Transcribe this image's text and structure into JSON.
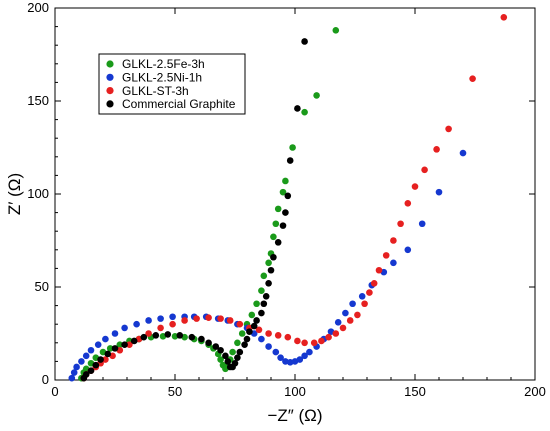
{
  "chart_data": {
    "type": "scatter",
    "title": "",
    "xlabel": "−Z″ (Ω)",
    "ylabel": "Z′ (Ω)",
    "xlim": [
      0,
      200
    ],
    "ylim": [
      0,
      200
    ],
    "xticks": [
      "0",
      "50",
      "100",
      "150",
      "200"
    ],
    "yticks": [
      "0",
      "50",
      "100",
      "150",
      "200"
    ],
    "grid": false,
    "legend_position": "top-left",
    "series": [
      {
        "name": "GLKL-2.5Fe-3h",
        "color": "#1a9a1a",
        "points": [
          [
            11,
            1
          ],
          [
            12,
            4
          ],
          [
            13,
            6
          ],
          [
            15,
            9
          ],
          [
            17,
            12
          ],
          [
            20,
            15
          ],
          [
            23,
            17
          ],
          [
            27,
            19
          ],
          [
            31,
            21
          ],
          [
            35,
            22
          ],
          [
            40,
            23
          ],
          [
            45,
            23.5
          ],
          [
            50,
            23.5
          ],
          [
            54,
            23
          ],
          [
            58,
            22
          ],
          [
            61,
            21
          ],
          [
            64,
            19
          ],
          [
            66,
            17
          ],
          [
            68,
            14
          ],
          [
            69,
            11
          ],
          [
            70,
            8
          ],
          [
            71,
            6
          ],
          [
            72,
            8
          ],
          [
            73,
            11
          ],
          [
            74,
            15
          ],
          [
            76,
            20
          ],
          [
            78,
            25
          ],
          [
            80,
            30
          ],
          [
            82,
            35
          ],
          [
            84,
            41
          ],
          [
            86,
            48
          ],
          [
            87,
            56
          ],
          [
            89,
            63
          ],
          [
            90,
            68
          ],
          [
            91,
            77
          ],
          [
            92,
            84
          ],
          [
            93,
            92
          ],
          [
            95,
            101
          ],
          [
            96,
            107
          ],
          [
            99,
            125
          ],
          [
            104,
            144
          ],
          [
            109,
            153
          ],
          [
            117,
            188
          ]
        ]
      },
      {
        "name": "GLKL-2.5Ni-1h",
        "color": "#1538d0",
        "points": [
          [
            7,
            1
          ],
          [
            8,
            4
          ],
          [
            9,
            7
          ],
          [
            11,
            10
          ],
          [
            13,
            13
          ],
          [
            15,
            16
          ],
          [
            18,
            19
          ],
          [
            21,
            22
          ],
          [
            25,
            25
          ],
          [
            29,
            28
          ],
          [
            34,
            30
          ],
          [
            39,
            32
          ],
          [
            44,
            33
          ],
          [
            49,
            34
          ],
          [
            54,
            34
          ],
          [
            58,
            34
          ],
          [
            63,
            34
          ],
          [
            68,
            33
          ],
          [
            72,
            32
          ],
          [
            76,
            30
          ],
          [
            80,
            28
          ],
          [
            83,
            25
          ],
          [
            86,
            22
          ],
          [
            89,
            18
          ],
          [
            92,
            15
          ],
          [
            94,
            12
          ],
          [
            96,
            10
          ],
          [
            98,
            9.5
          ],
          [
            100,
            10
          ],
          [
            102,
            11
          ],
          [
            104,
            13
          ],
          [
            106,
            15
          ],
          [
            109,
            18
          ],
          [
            112,
            22
          ],
          [
            115,
            26
          ],
          [
            118,
            31
          ],
          [
            121,
            36
          ],
          [
            124,
            41
          ],
          [
            128,
            45
          ],
          [
            132,
            51
          ],
          [
            137,
            58
          ],
          [
            141,
            63
          ],
          [
            147,
            70
          ],
          [
            153,
            84
          ],
          [
            160,
            101
          ],
          [
            170,
            122
          ]
        ]
      },
      {
        "name": "GLKL-ST-3h",
        "color": "#e62020",
        "points": [
          [
            12,
            1
          ],
          [
            13,
            3
          ],
          [
            15,
            5
          ],
          [
            17,
            7
          ],
          [
            19,
            9
          ],
          [
            21,
            11
          ],
          [
            24,
            13
          ],
          [
            27,
            16
          ],
          [
            31,
            19
          ],
          [
            35,
            22
          ],
          [
            39,
            25
          ],
          [
            44,
            28
          ],
          [
            49,
            30
          ],
          [
            54,
            32
          ],
          [
            59,
            33
          ],
          [
            64,
            33.5
          ],
          [
            69,
            33
          ],
          [
            73,
            32
          ],
          [
            77,
            30
          ],
          [
            81,
            28
          ],
          [
            85,
            27
          ],
          [
            89,
            25
          ],
          [
            93,
            24
          ],
          [
            97,
            23
          ],
          [
            101,
            21
          ],
          [
            104,
            20
          ],
          [
            108,
            20
          ],
          [
            111,
            21
          ],
          [
            114,
            23
          ],
          [
            117,
            25
          ],
          [
            120,
            28
          ],
          [
            123,
            32
          ],
          [
            126,
            35
          ],
          [
            129,
            41
          ],
          [
            131,
            47
          ],
          [
            133,
            52
          ],
          [
            135,
            59
          ],
          [
            138,
            67
          ],
          [
            141,
            75
          ],
          [
            144,
            84
          ],
          [
            147,
            95
          ],
          [
            150,
            104
          ],
          [
            154,
            113
          ],
          [
            159,
            124
          ],
          [
            164,
            135
          ],
          [
            174,
            162
          ],
          [
            187,
            195
          ]
        ]
      },
      {
        "name": "Commercial Graphite",
        "color": "#000000",
        "points": [
          [
            12,
            1
          ],
          [
            13,
            3
          ],
          [
            15,
            5
          ],
          [
            17,
            8
          ],
          [
            19,
            11
          ],
          [
            22,
            14
          ],
          [
            25,
            17
          ],
          [
            29,
            19
          ],
          [
            33,
            21
          ],
          [
            37,
            23
          ],
          [
            42,
            24
          ],
          [
            47,
            24.5
          ],
          [
            52,
            24
          ],
          [
            57,
            23
          ],
          [
            61,
            22
          ],
          [
            64,
            20
          ],
          [
            67,
            18
          ],
          [
            69,
            16
          ],
          [
            71,
            13
          ],
          [
            72,
            10
          ],
          [
            73,
            7
          ],
          [
            74,
            7
          ],
          [
            75,
            9
          ],
          [
            76,
            12
          ],
          [
            77,
            15
          ],
          [
            79,
            19
          ],
          [
            80,
            22
          ],
          [
            81,
            26
          ],
          [
            83,
            29
          ],
          [
            84,
            32
          ],
          [
            86,
            36
          ],
          [
            87,
            41
          ],
          [
            88,
            45
          ],
          [
            89,
            52
          ],
          [
            90,
            59
          ],
          [
            91,
            66
          ],
          [
            93,
            74
          ],
          [
            95,
            83
          ],
          [
            96,
            90
          ],
          [
            97,
            99
          ],
          [
            98,
            118
          ],
          [
            101,
            146
          ],
          [
            104,
            182
          ]
        ]
      }
    ]
  }
}
